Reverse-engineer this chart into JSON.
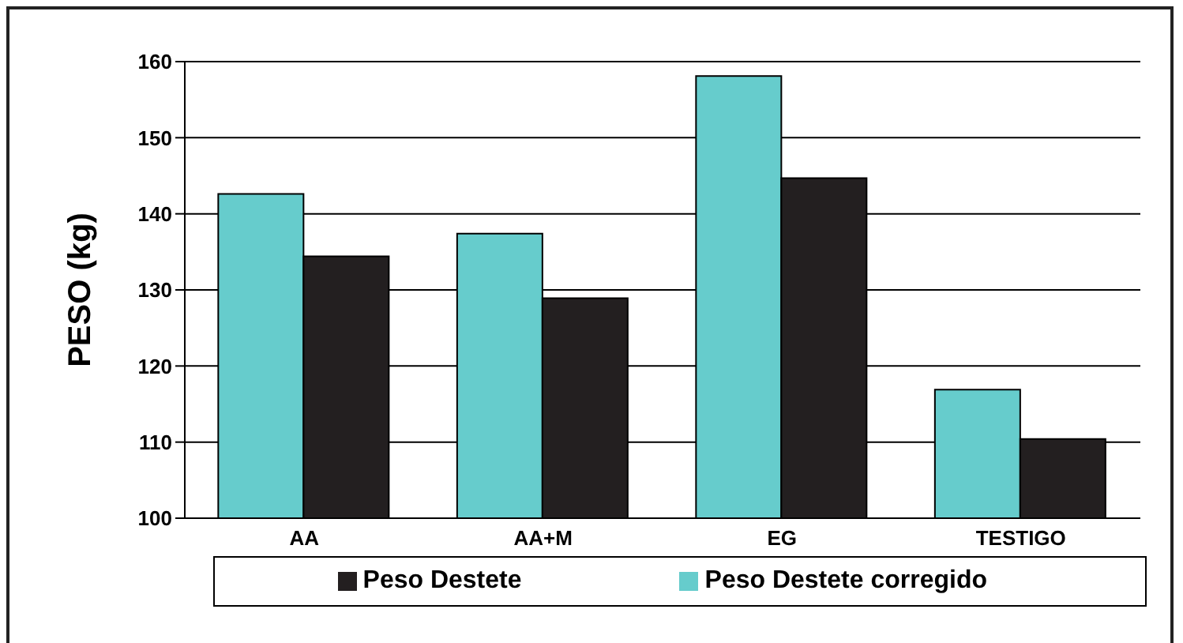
{
  "chart_data": {
    "type": "bar",
    "ylabel": "PESO (kg)",
    "categories": [
      "AA",
      "AA+M",
      "EG",
      "TESTIGO"
    ],
    "series": [
      {
        "name": "Peso Destete corregido",
        "color": "#66cccc",
        "values": [
          142.6,
          137.4,
          158.1,
          116.9
        ]
      },
      {
        "name": "Peso Destete",
        "color": "#231f20",
        "values": [
          134.4,
          128.9,
          144.7,
          110.4
        ]
      }
    ],
    "ylim": [
      100,
      160
    ],
    "yticks": [
      100,
      110,
      120,
      130,
      140,
      150,
      160
    ],
    "grid": "y",
    "legend": "bottom"
  }
}
